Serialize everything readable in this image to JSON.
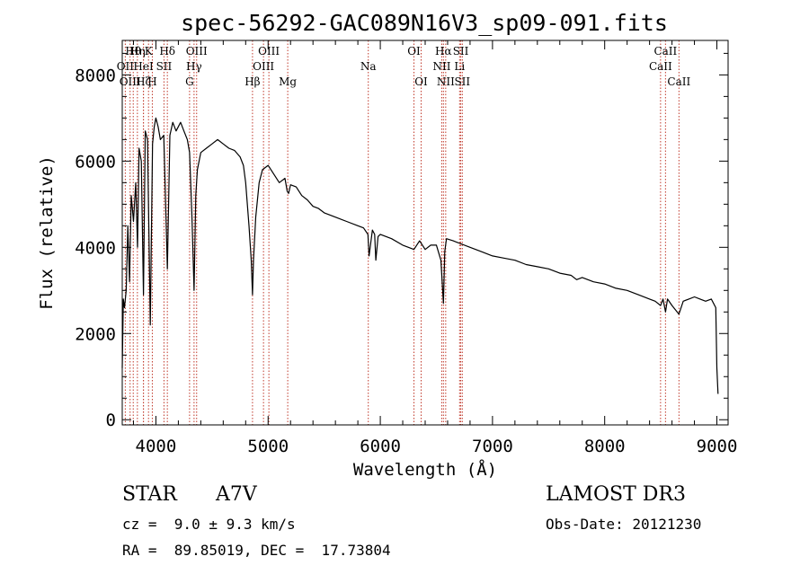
{
  "chart_data": {
    "type": "line",
    "title": "spec-56292-GAC089N16V3_sp09-091.fits",
    "xlabel": "Wavelength (Å)",
    "ylabel": "Flux (relative)",
    "xlim": [
      3700,
      9100
    ],
    "ylim": [
      -120,
      8800
    ],
    "xticks": [
      4000,
      5000,
      6000,
      7000,
      8000,
      9000
    ],
    "xtick_labels": [
      "4000",
      "5000",
      "6000",
      "7000",
      "8000",
      "9000"
    ],
    "yticks": [
      0,
      2000,
      4000,
      6000,
      8000
    ],
    "ytick_labels": [
      "0",
      "2000",
      "4000",
      "6000",
      "8000"
    ],
    "series": [
      {
        "name": "flux",
        "x": [
          3700,
          3710,
          3720,
          3735,
          3750,
          3765,
          3780,
          3800,
          3820,
          3836,
          3850,
          3870,
          3889,
          3905,
          3925,
          3950,
          3970,
          3985,
          4000,
          4020,
          4040,
          4070,
          4102,
          4125,
          4150,
          4180,
          4220,
          4250,
          4280,
          4300,
          4320,
          4340,
          4355,
          4370,
          4400,
          4450,
          4500,
          4550,
          4600,
          4650,
          4700,
          4750,
          4780,
          4800,
          4830,
          4850,
          4861,
          4870,
          4890,
          4920,
          4950,
          5000,
          5050,
          5100,
          5150,
          5170,
          5183,
          5200,
          5250,
          5300,
          5350,
          5400,
          5450,
          5500,
          5600,
          5700,
          5800,
          5850,
          5890,
          5900,
          5930,
          5950,
          5960,
          5980,
          6000,
          6100,
          6200,
          6250,
          6300,
          6350,
          6400,
          6450,
          6500,
          6540,
          6563,
          6575,
          6590,
          6650,
          6700,
          6800,
          6900,
          7000,
          7100,
          7200,
          7300,
          7400,
          7500,
          7600,
          7700,
          7750,
          7800,
          7900,
          8000,
          8100,
          8200,
          8300,
          8400,
          8450,
          8498,
          8520,
          8542,
          8560,
          8600,
          8662,
          8700,
          8750,
          8800,
          8850,
          8900,
          8950,
          8970,
          8990,
          9000,
          9010
        ],
        "y": [
          1200,
          2800,
          2600,
          3000,
          4500,
          3200,
          5200,
          4600,
          5500,
          4000,
          6300,
          6000,
          2900,
          6700,
          6500,
          2200,
          6400,
          6800,
          7000,
          6800,
          6500,
          6600,
          3500,
          6600,
          6900,
          6700,
          6900,
          6700,
          6500,
          6200,
          4800,
          3000,
          5200,
          5800,
          6200,
          6300,
          6400,
          6500,
          6400,
          6300,
          6250,
          6100,
          5900,
          5500,
          4500,
          3700,
          2900,
          3700,
          4700,
          5500,
          5800,
          5900,
          5700,
          5500,
          5600,
          5300,
          5250,
          5450,
          5400,
          5200,
          5100,
          4950,
          4900,
          4800,
          4700,
          4600,
          4500,
          4450,
          4300,
          3800,
          4400,
          4300,
          3700,
          4250,
          4300,
          4200,
          4050,
          4000,
          3950,
          4150,
          3950,
          4050,
          4050,
          3700,
          2700,
          3900,
          4200,
          4150,
          4100,
          4000,
          3900,
          3800,
          3750,
          3700,
          3600,
          3550,
          3500,
          3400,
          3350,
          3250,
          3300,
          3200,
          3150,
          3050,
          3000,
          2900,
          2800,
          2750,
          2650,
          2800,
          2500,
          2800,
          2650,
          2450,
          2750,
          2800,
          2850,
          2800,
          2750,
          2800,
          2700,
          2600,
          1200,
          600
        ]
      }
    ],
    "line_markers": [
      {
        "wave": 3727,
        "label": "OII",
        "row": 1
      },
      {
        "wave": 3770,
        "label": "OIII",
        "row": 2
      },
      {
        "wave": 3798,
        "label": "Hθ",
        "row": 0
      },
      {
        "wave": 3835,
        "label": "Hη",
        "row": 0
      },
      {
        "wave": 3889,
        "label": "HeI",
        "row": 1
      },
      {
        "wave": 3889,
        "label": "Hζ",
        "row": 2
      },
      {
        "wave": 3934,
        "label": "K",
        "row": 0
      },
      {
        "wave": 3968,
        "label": "H",
        "row": 2
      },
      {
        "wave": 4072,
        "label": "SII",
        "row": 1
      },
      {
        "wave": 4102,
        "label": "Hδ",
        "row": 0
      },
      {
        "wave": 4300,
        "label": "G",
        "row": 2
      },
      {
        "wave": 4340,
        "label": "Hγ",
        "row": 1
      },
      {
        "wave": 4363,
        "label": "OIII",
        "row": 0
      },
      {
        "wave": 4861,
        "label": "Hβ",
        "row": 2
      },
      {
        "wave": 4959,
        "label": "OIII",
        "row": 1
      },
      {
        "wave": 5007,
        "label": "OIII",
        "row": 0
      },
      {
        "wave": 5175,
        "label": "Mg",
        "row": 2
      },
      {
        "wave": 5893,
        "label": "Na",
        "row": 1
      },
      {
        "wave": 6300,
        "label": "OI",
        "row": 0
      },
      {
        "wave": 6364,
        "label": "OI",
        "row": 2
      },
      {
        "wave": 6548,
        "label": "NII",
        "row": 1
      },
      {
        "wave": 6563,
        "label": "Hα",
        "row": 0
      },
      {
        "wave": 6583,
        "label": "NII",
        "row": 2
      },
      {
        "wave": 6707,
        "label": "Li",
        "row": 1
      },
      {
        "wave": 6717,
        "label": "SII",
        "row": 0
      },
      {
        "wave": 6731,
        "label": "SII",
        "row": 2
      },
      {
        "wave": 8498,
        "label": "CaII",
        "row": 1
      },
      {
        "wave": 8542,
        "label": "CaII",
        "row": 0
      },
      {
        "wave": 8662,
        "label": "CaII",
        "row": 2
      }
    ]
  },
  "info": {
    "object_type": "STAR",
    "subclass": "A7V",
    "survey": "LAMOST DR3",
    "redshift": "cz =  9.0 ± 9.3 km/s",
    "obs_date": "Obs-Date: 20121230",
    "coords": "RA =  89.85019, DEC =  17.73804"
  },
  "colors": {
    "marker": "#c0392b",
    "spectrum": "#000000"
  }
}
